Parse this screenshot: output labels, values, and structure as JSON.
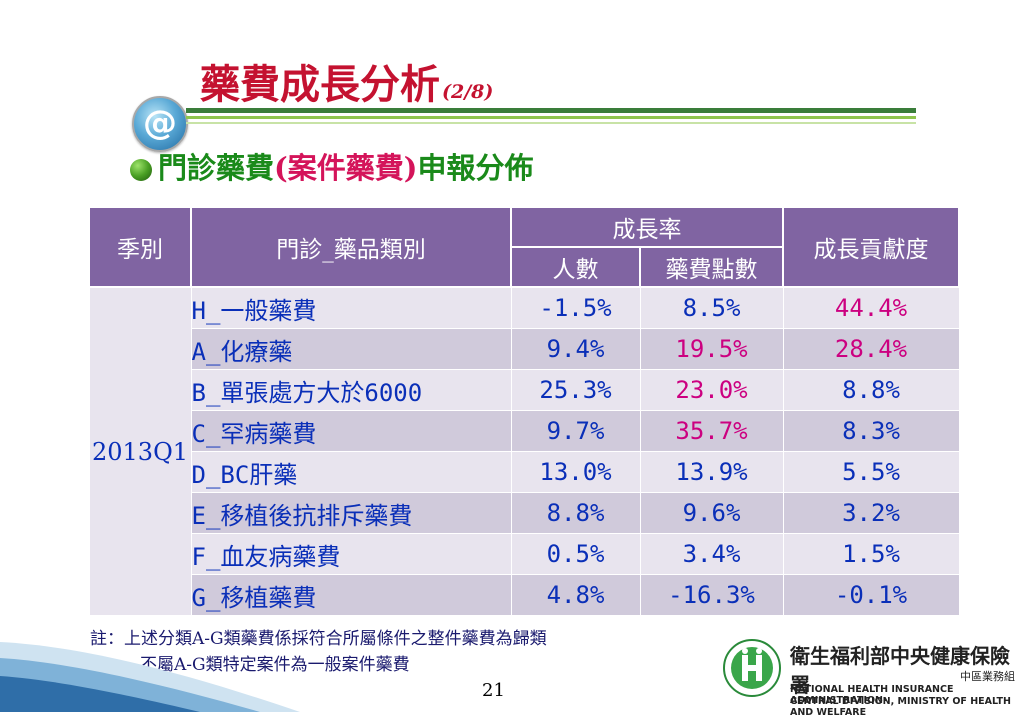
{
  "slide": {
    "title": "藥費成長分析",
    "title_suffix": "(2/8)",
    "subtitle_a": "門診藥費",
    "subtitle_b": "(案件藥費)",
    "subtitle_c": "申報分佈",
    "page_number": "21"
  },
  "table": {
    "headers": {
      "season": "季別",
      "category": "門診_藥品類別",
      "growth": "成長率",
      "people": "人數",
      "points": "藥費點數",
      "contribution": "成長貢獻度"
    },
    "season": "2013Q1",
    "rows": [
      {
        "category": "H_一般藥費",
        "people": "-1.5%",
        "points": "8.5%",
        "contribution": "44.4%"
      },
      {
        "category": "A_化療藥",
        "people": "9.4%",
        "points": "19.5%",
        "contribution": "28.4%"
      },
      {
        "category": "B_單張處方大於6000",
        "people": "25.3%",
        "points": "23.0%",
        "contribution": "8.8%"
      },
      {
        "category": "C_罕病藥費",
        "people": "9.7%",
        "points": "35.7%",
        "contribution": "8.3%"
      },
      {
        "category": "D_BC肝藥",
        "people": "13.0%",
        "points": "13.9%",
        "contribution": "5.5%"
      },
      {
        "category": "E_移植後抗排斥藥費",
        "people": "8.8%",
        "points": "9.6%",
        "contribution": "3.2%"
      },
      {
        "category": "F_血友病藥費",
        "people": "0.5%",
        "points": "3.4%",
        "contribution": "1.5%"
      },
      {
        "category": "G_移植藥費",
        "people": "4.8%",
        "points": "-16.3%",
        "contribution": "-0.1%"
      }
    ],
    "highlight_color": "#cc0080"
  },
  "note": {
    "line1": "註：上述分類A-G類藥費係採符合所屬條件之整件藥費為歸類",
    "line2": "不屬A-G類特定案件為一般案件藥費"
  },
  "footer": {
    "org_name": "衛生福利部中央健康保險署",
    "org_division": "中區業務組",
    "org_en_line1": "NATIONAL HEALTH INSURANCE ADMINISTRATION-",
    "org_en_line2": "CENTRAL DIVISION, MINISTRY OF HEALTH AND WELFARE"
  },
  "icons": {
    "at": "at-icon",
    "bullet": "green-bullet-icon",
    "logo": "nhi-logo-icon"
  }
}
